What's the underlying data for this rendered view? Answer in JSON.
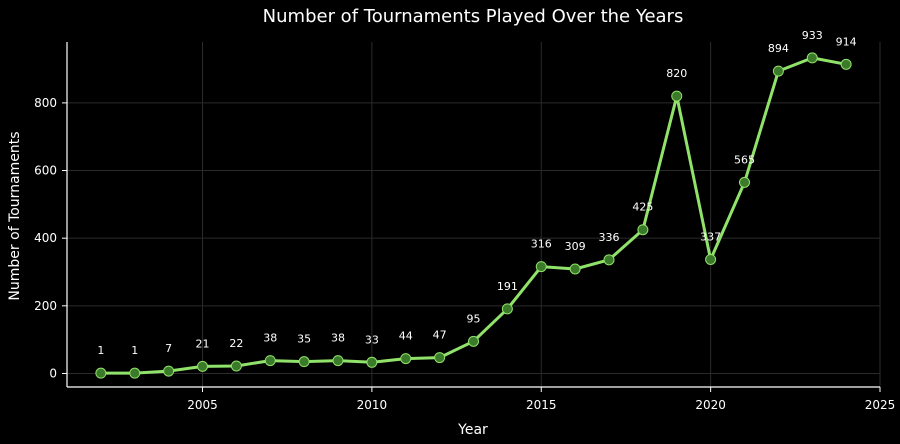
{
  "chart_data": {
    "type": "line",
    "title": "Number of Tournaments Played Over the Years",
    "xlabel": "Year",
    "ylabel": "Number of Tournaments",
    "xlim": [
      2001,
      2025
    ],
    "ylim": [
      -40,
      980
    ],
    "xticks": [
      2005,
      2010,
      2015,
      2020,
      2025
    ],
    "yticks": [
      0,
      200,
      400,
      600,
      800
    ],
    "grid": true,
    "line_color": "#90e26a",
    "marker_face": "#3a7a2a",
    "background": "#000000",
    "x": [
      2002,
      2003,
      2004,
      2005,
      2006,
      2007,
      2008,
      2009,
      2010,
      2011,
      2012,
      2013,
      2014,
      2015,
      2016,
      2017,
      2018,
      2019,
      2020,
      2021,
      2022,
      2023,
      2024
    ],
    "values": [
      1,
      1,
      7,
      21,
      22,
      38,
      35,
      38,
      33,
      44,
      47,
      95,
      191,
      316,
      309,
      336,
      425,
      820,
      337,
      565,
      894,
      933,
      914
    ]
  }
}
